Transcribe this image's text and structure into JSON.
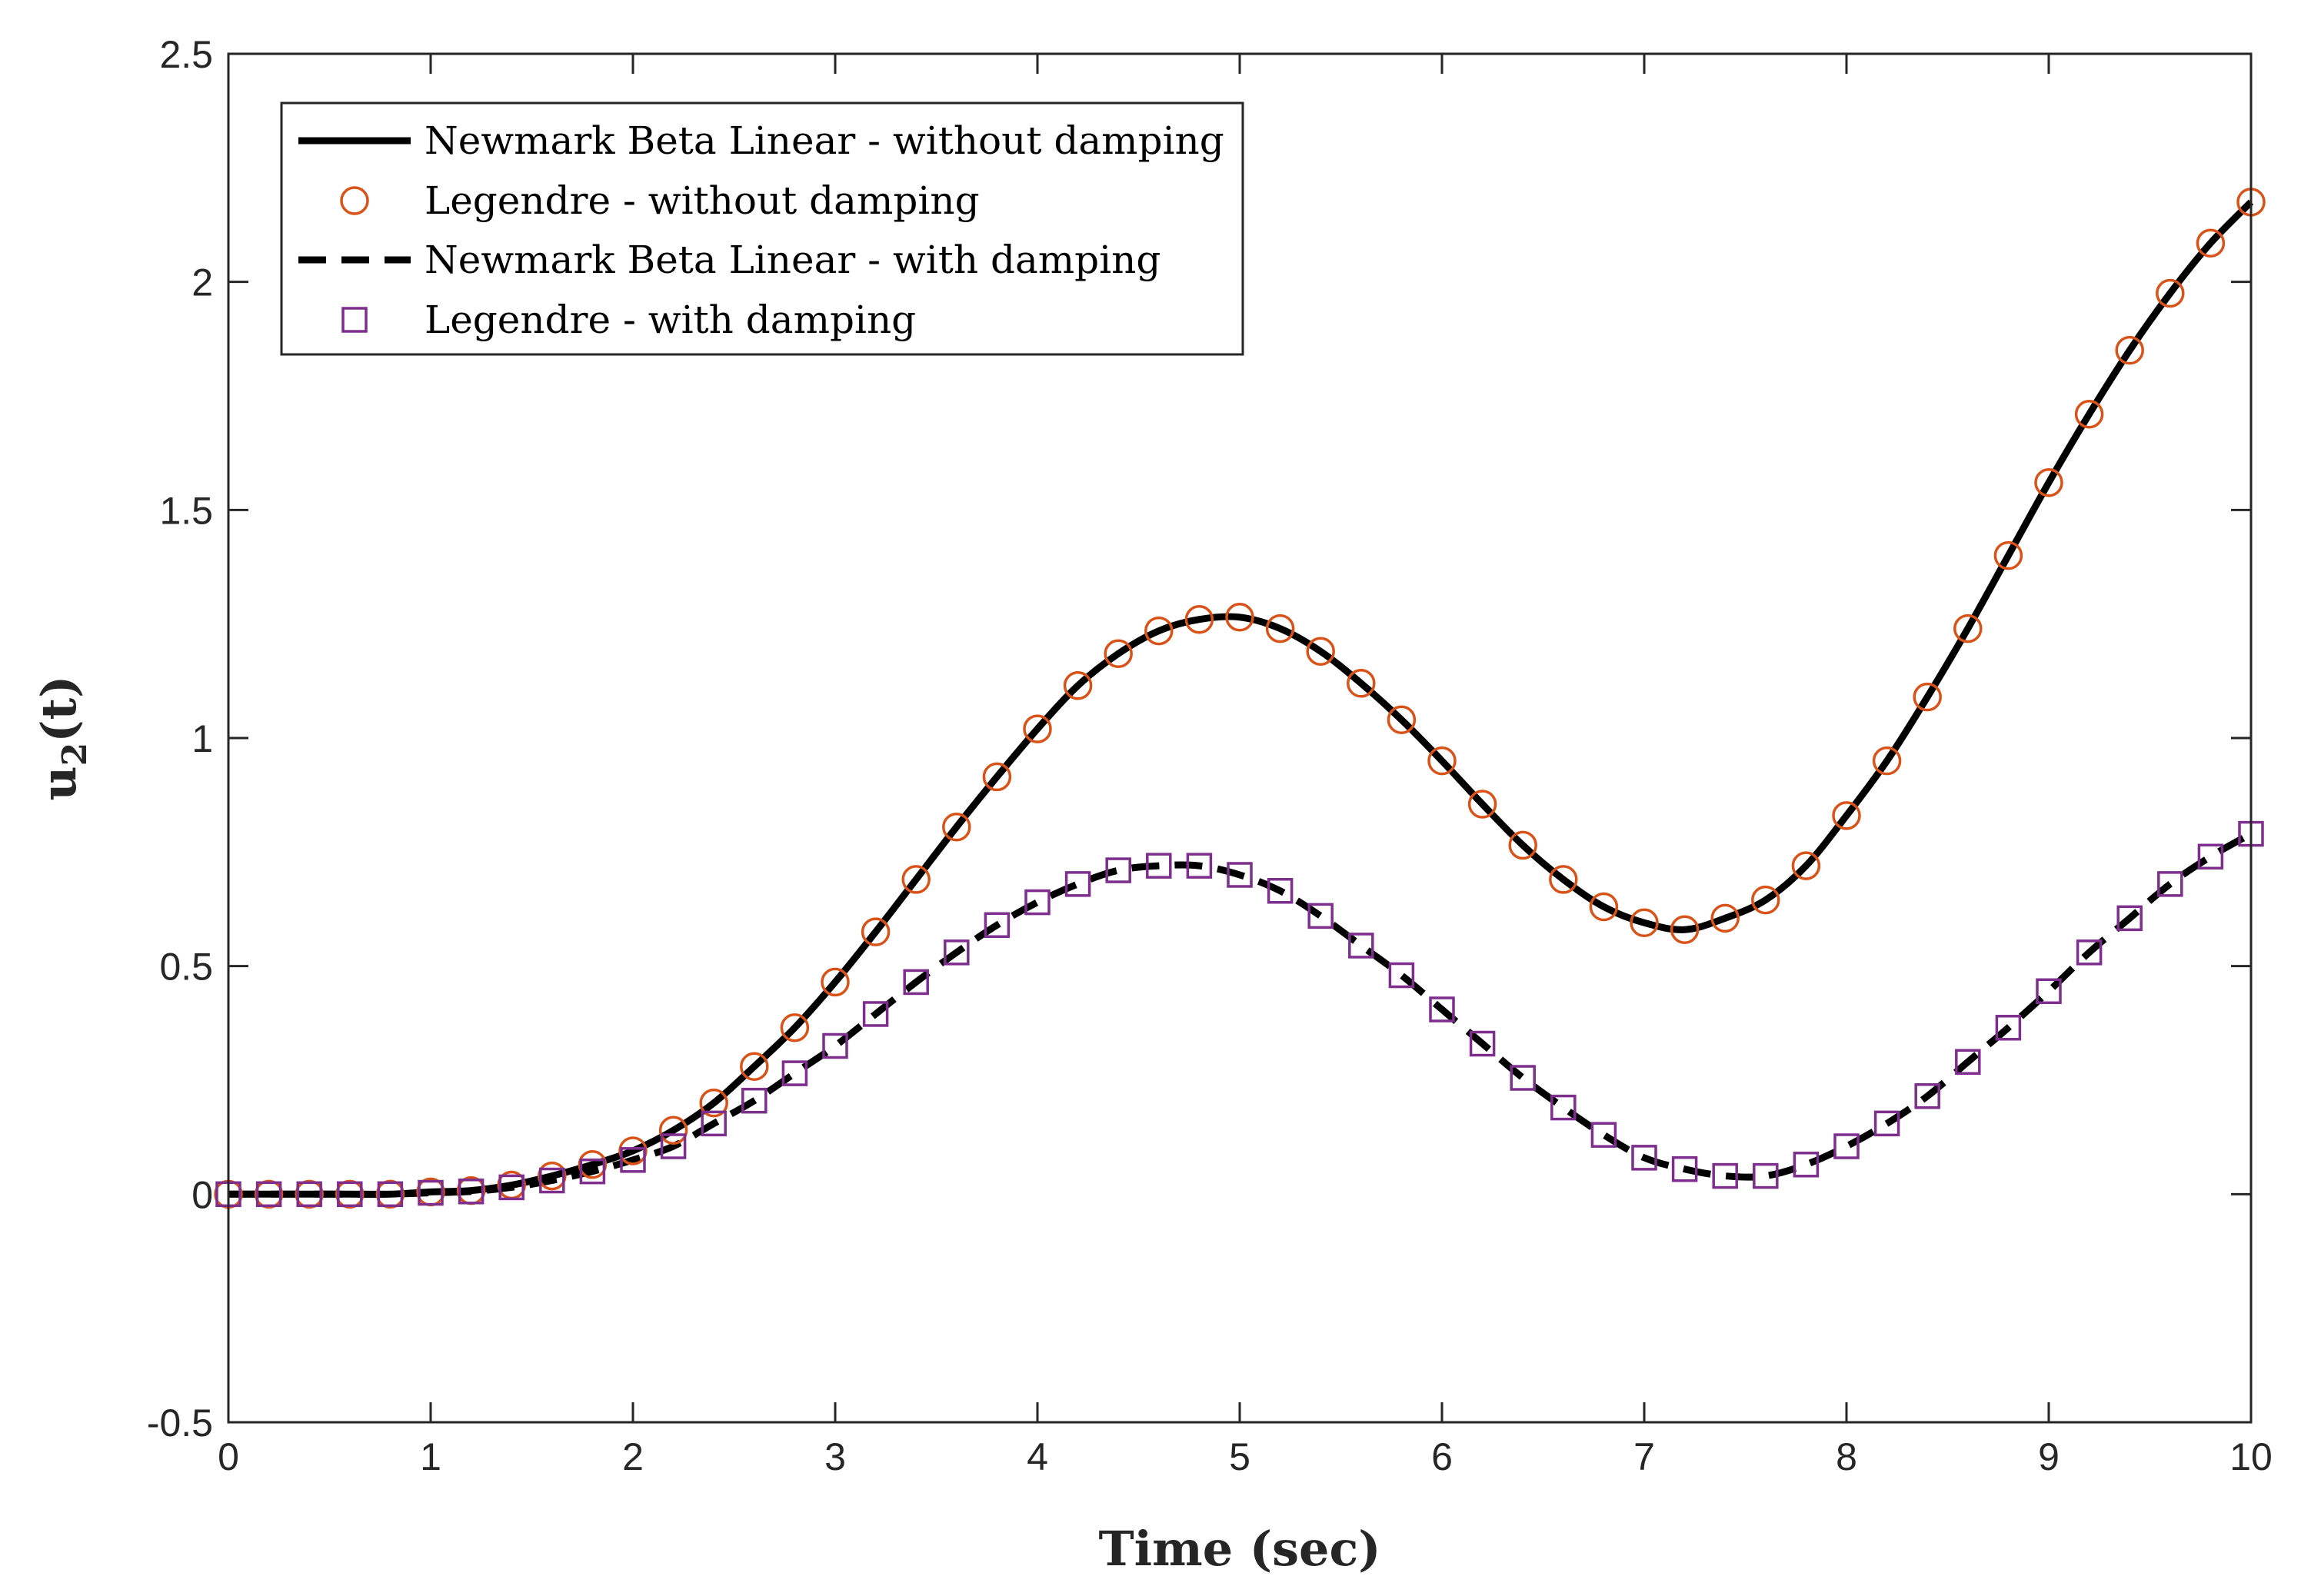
{
  "chart_data": {
    "type": "line",
    "title": "",
    "xlabel": "Time (sec)",
    "ylabel_main": "u",
    "ylabel_sub": "2",
    "ylabel_tail": "(t)",
    "xlim": [
      0,
      10
    ],
    "ylim": [
      -0.5,
      2.5
    ],
    "xticks": [
      0,
      1,
      2,
      3,
      4,
      5,
      6,
      7,
      8,
      9,
      10
    ],
    "xtick_labels": [
      "0",
      "1",
      "2",
      "3",
      "4",
      "5",
      "6",
      "7",
      "8",
      "9",
      "10"
    ],
    "yticks": [
      -0.5,
      0,
      0.5,
      1,
      1.5,
      2,
      2.5
    ],
    "ytick_labels": [
      "-0.5",
      "0",
      "0.5",
      "1",
      "1.5",
      "2",
      "2.5"
    ],
    "grid": false,
    "legend_position": "top-left",
    "x": [
      0,
      0.2,
      0.4,
      0.6,
      0.8,
      1.0,
      1.2,
      1.4,
      1.6,
      1.8,
      2.0,
      2.2,
      2.4,
      2.6,
      2.8,
      3.0,
      3.2,
      3.4,
      3.6,
      3.8,
      4.0,
      4.2,
      4.4,
      4.6,
      4.8,
      5.0,
      5.2,
      5.4,
      5.6,
      5.8,
      6.0,
      6.2,
      6.4,
      6.6,
      6.8,
      7.0,
      7.2,
      7.4,
      7.6,
      7.8,
      8.0,
      8.2,
      8.4,
      8.6,
      8.8,
      9.0,
      9.2,
      9.4,
      9.6,
      9.8,
      10.0
    ],
    "series": [
      {
        "name": "Newmark Beta Linear - without damping",
        "style": "solid",
        "color": "#000000",
        "values": [
          0,
          0,
          0,
          0,
          0,
          0.005,
          0.008,
          0.02,
          0.04,
          0.065,
          0.095,
          0.14,
          0.2,
          0.28,
          0.365,
          0.465,
          0.575,
          0.69,
          0.805,
          0.915,
          1.02,
          1.115,
          1.185,
          1.235,
          1.26,
          1.265,
          1.24,
          1.19,
          1.12,
          1.04,
          0.95,
          0.855,
          0.765,
          0.69,
          0.63,
          0.595,
          0.58,
          0.605,
          0.645,
          0.72,
          0.83,
          0.95,
          1.09,
          1.24,
          1.4,
          1.56,
          1.71,
          1.85,
          1.975,
          2.085,
          2.175
        ]
      },
      {
        "name": "Legendre - without damping",
        "style": "circle",
        "color": "#d95319",
        "values": [
          0,
          0,
          0,
          0,
          0,
          0.005,
          0.008,
          0.02,
          0.04,
          0.065,
          0.095,
          0.14,
          0.2,
          0.28,
          0.365,
          0.465,
          0.575,
          0.69,
          0.805,
          0.915,
          1.02,
          1.115,
          1.185,
          1.235,
          1.26,
          1.265,
          1.24,
          1.19,
          1.12,
          1.04,
          0.95,
          0.855,
          0.765,
          0.69,
          0.63,
          0.595,
          0.58,
          0.605,
          0.645,
          0.72,
          0.83,
          0.95,
          1.09,
          1.24,
          1.4,
          1.56,
          1.71,
          1.85,
          1.975,
          2.085,
          2.175
        ]
      },
      {
        "name": "Newmark Beta Linear - with damping",
        "style": "dashed",
        "color": "#000000",
        "values": [
          0,
          0,
          0,
          0,
          0,
          0.003,
          0.006,
          0.015,
          0.03,
          0.05,
          0.075,
          0.105,
          0.155,
          0.205,
          0.265,
          0.325,
          0.395,
          0.465,
          0.53,
          0.59,
          0.64,
          0.68,
          0.71,
          0.72,
          0.72,
          0.7,
          0.665,
          0.61,
          0.545,
          0.48,
          0.405,
          0.33,
          0.255,
          0.19,
          0.13,
          0.08,
          0.055,
          0.04,
          0.04,
          0.065,
          0.105,
          0.155,
          0.215,
          0.29,
          0.365,
          0.445,
          0.53,
          0.605,
          0.68,
          0.74,
          0.79
        ]
      },
      {
        "name": "Legendre - with damping",
        "style": "square",
        "color": "#7e2f8e",
        "values": [
          0,
          0,
          0,
          0,
          0,
          0.003,
          0.006,
          0.015,
          0.03,
          0.05,
          0.075,
          0.105,
          0.155,
          0.205,
          0.265,
          0.325,
          0.395,
          0.465,
          0.53,
          0.59,
          0.64,
          0.68,
          0.71,
          0.72,
          0.72,
          0.7,
          0.665,
          0.61,
          0.545,
          0.48,
          0.405,
          0.33,
          0.255,
          0.19,
          0.13,
          0.08,
          0.055,
          0.04,
          0.04,
          0.065,
          0.105,
          0.155,
          0.215,
          0.29,
          0.365,
          0.445,
          0.53,
          0.605,
          0.68,
          0.74,
          0.79
        ]
      }
    ]
  }
}
